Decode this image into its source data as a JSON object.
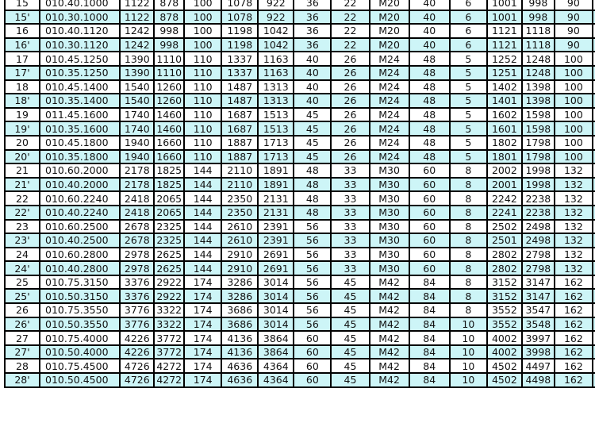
{
  "colors": {
    "alt_row": "#cdf5f7",
    "row": "#ffffff",
    "border": "#000000"
  },
  "rows": [
    [
      "15",
      "010.40.1000",
      "1122",
      "878",
      "100",
      "1078",
      "922",
      "36",
      "22",
      "M20",
      "40",
      "6",
      "1001",
      "998",
      "90",
      "10"
    ],
    [
      "15'",
      "010.30.1000",
      "1122",
      "878",
      "100",
      "1078",
      "922",
      "36",
      "22",
      "M20",
      "40",
      "6",
      "1001",
      "998",
      "90",
      "10"
    ],
    [
      "16",
      "010.40.1120",
      "1242",
      "998",
      "100",
      "1198",
      "1042",
      "36",
      "22",
      "M20",
      "40",
      "6",
      "1121",
      "1118",
      "90",
      "10"
    ],
    [
      "16'",
      "010.30.1120",
      "1242",
      "998",
      "100",
      "1198",
      "1042",
      "36",
      "22",
      "M20",
      "40",
      "6",
      "1121",
      "1118",
      "90",
      "10"
    ],
    [
      "17",
      "010.45.1250",
      "1390",
      "1110",
      "110",
      "1337",
      "1163",
      "40",
      "26",
      "M24",
      "48",
      "5",
      "1252",
      "1248",
      "100",
      "10"
    ],
    [
      "17'",
      "010.35.1250",
      "1390",
      "1110",
      "110",
      "1337",
      "1163",
      "40",
      "26",
      "M24",
      "48",
      "5",
      "1251",
      "1248",
      "100",
      "10"
    ],
    [
      "18",
      "010.45.1400",
      "1540",
      "1260",
      "110",
      "1487",
      "1313",
      "40",
      "26",
      "M24",
      "48",
      "5",
      "1402",
      "1398",
      "100",
      "10"
    ],
    [
      "18'",
      "010.35.1400",
      "1540",
      "1260",
      "110",
      "1487",
      "1313",
      "40",
      "26",
      "M24",
      "48",
      "5",
      "1401",
      "1398",
      "100",
      "10"
    ],
    [
      "19",
      "011.45.1600",
      "1740",
      "1460",
      "110",
      "1687",
      "1513",
      "45",
      "26",
      "M24",
      "48",
      "5",
      "1602",
      "1598",
      "100",
      "10"
    ],
    [
      "19'",
      "010.35.1600",
      "1740",
      "1460",
      "110",
      "1687",
      "1513",
      "45",
      "26",
      "M24",
      "48",
      "5",
      "1601",
      "1598",
      "100",
      "10"
    ],
    [
      "20",
      "010.45.1800",
      "1940",
      "1660",
      "110",
      "1887",
      "1713",
      "45",
      "26",
      "M24",
      "48",
      "5",
      "1802",
      "1798",
      "100",
      "10"
    ],
    [
      "20'",
      "010.35.1800",
      "1940",
      "1660",
      "110",
      "1887",
      "1713",
      "45",
      "26",
      "M24",
      "48",
      "5",
      "1801",
      "1798",
      "100",
      "10"
    ],
    [
      "21",
      "010.60.2000",
      "2178",
      "1825",
      "144",
      "2110",
      "1891",
      "48",
      "33",
      "M30",
      "60",
      "8",
      "2002",
      "1998",
      "132",
      "12"
    ],
    [
      "21'",
      "010.40.2000",
      "2178",
      "1825",
      "144",
      "2110",
      "1891",
      "48",
      "33",
      "M30",
      "60",
      "8",
      "2001",
      "1998",
      "132",
      "12"
    ],
    [
      "22",
      "010.60.2240",
      "2418",
      "2065",
      "144",
      "2350",
      "2131",
      "48",
      "33",
      "M30",
      "60",
      "8",
      "2242",
      "2238",
      "132",
      "12"
    ],
    [
      "22'",
      "010.40.2240",
      "2418",
      "2065",
      "144",
      "2350",
      "2131",
      "48",
      "33",
      "M30",
      "60",
      "8",
      "2241",
      "2238",
      "132",
      "12"
    ],
    [
      "23",
      "010.60.2500",
      "2678",
      "2325",
      "144",
      "2610",
      "2391",
      "56",
      "33",
      "M30",
      "60",
      "8",
      "2502",
      "2498",
      "132",
      "12"
    ],
    [
      "23'",
      "010.40.2500",
      "2678",
      "2325",
      "144",
      "2610",
      "2391",
      "56",
      "33",
      "M30",
      "60",
      "8",
      "2501",
      "2498",
      "132",
      "12"
    ],
    [
      "24",
      "010.60.2800",
      "2978",
      "2625",
      "144",
      "2910",
      "2691",
      "56",
      "33",
      "M30",
      "60",
      "8",
      "2802",
      "2798",
      "132",
      "12"
    ],
    [
      "24'",
      "010.40.2800",
      "2978",
      "2625",
      "144",
      "2910",
      "2691",
      "56",
      "33",
      "M30",
      "60",
      "8",
      "2802",
      "2798",
      "132",
      "12"
    ],
    [
      "25",
      "010.75.3150",
      "3376",
      "2922",
      "174",
      "3286",
      "3014",
      "56",
      "45",
      "M42",
      "84",
      "8",
      "3152",
      "3147",
      "162",
      "12"
    ],
    [
      "25'",
      "010.50.3150",
      "3376",
      "2922",
      "174",
      "3286",
      "3014",
      "56",
      "45",
      "M42",
      "84",
      "8",
      "3152",
      "3147",
      "162",
      "12"
    ],
    [
      "26",
      "010.75.3550",
      "3776",
      "3322",
      "174",
      "3686",
      "3014",
      "56",
      "45",
      "M42",
      "84",
      "8",
      "3552",
      "3547",
      "162",
      "12"
    ],
    [
      "26'",
      "010.50.3550",
      "3776",
      "3322",
      "174",
      "3686",
      "3014",
      "56",
      "45",
      "M42",
      "84",
      "10",
      "3552",
      "3548",
      "162",
      "12"
    ],
    [
      "27",
      "010.75.4000",
      "4226",
      "3772",
      "174",
      "4136",
      "3864",
      "60",
      "45",
      "M42",
      "84",
      "10",
      "4002",
      "3997",
      "162",
      "12"
    ],
    [
      "27'",
      "010.50.4000",
      "4226",
      "3772",
      "174",
      "4136",
      "3864",
      "60",
      "45",
      "M42",
      "84",
      "10",
      "4002",
      "3998",
      "162",
      "12"
    ],
    [
      "28",
      "010.75.4500",
      "4726",
      "4272",
      "174",
      "4636",
      "4364",
      "60",
      "45",
      "M42",
      "84",
      "10",
      "4502",
      "4497",
      "162",
      "12"
    ],
    [
      "28'",
      "010.50.4500",
      "4726",
      "4272",
      "174",
      "4636",
      "4364",
      "60",
      "45",
      "M42",
      "84",
      "10",
      "4502",
      "4498",
      "162",
      "12"
    ]
  ]
}
